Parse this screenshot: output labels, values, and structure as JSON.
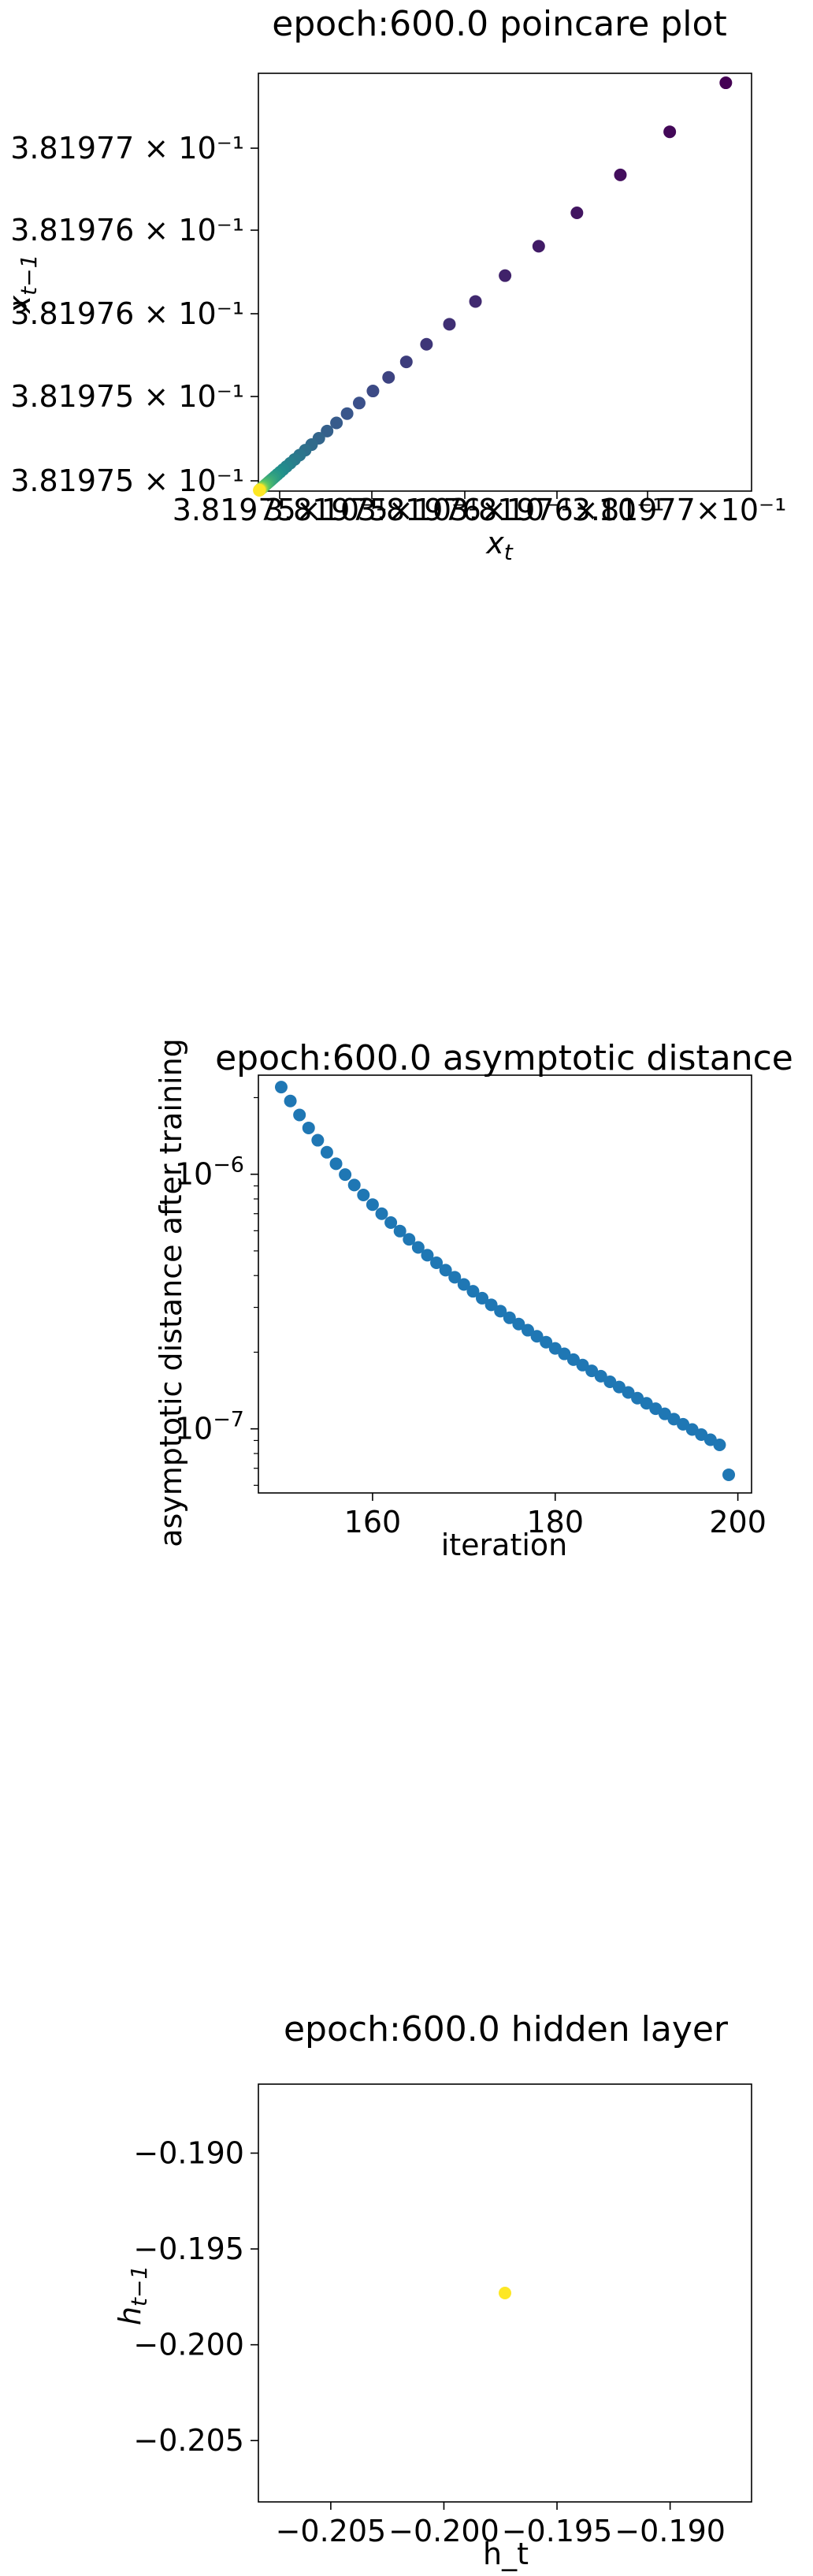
{
  "charts": [
    {
      "title": "epoch:600.0 poincare plot",
      "xlabel": "x",
      "xlabel_sub": "t",
      "ylabel": "x",
      "ylabel_sub": "t−1",
      "xtick_labels": [
        "3.81975×10⁻¹",
        "3.81975×10⁻¹",
        "3.81976×10⁻¹",
        "3.81976×10⁻¹",
        "3.81977×10⁻¹"
      ],
      "ytick_labels": [
        "3.81975 × 10⁻¹",
        "3.81975 × 10⁻¹",
        "3.81976 × 10⁻¹",
        "3.81976 × 10⁻¹",
        "3.81977 × 10⁻¹"
      ]
    },
    {
      "title": "epoch:600.0 asymptotic distance",
      "xlabel": "iteration",
      "ylabel": "asymptotic distance after training",
      "xtick_labels": [
        "160",
        "180",
        "200"
      ],
      "ytick_major": [
        {
          "base": "10",
          "exp": "−7"
        },
        {
          "base": "10",
          "exp": "−6"
        }
      ]
    },
    {
      "title": "epoch:600.0 hidden layer",
      "xlabel": "h_t",
      "ylabel": "h",
      "ylabel_sub": "t−1",
      "xtick_labels": [
        "−0.205",
        "−0.200",
        "−0.195",
        "−0.190"
      ],
      "ytick_labels": [
        "−0.190",
        "−0.195",
        "−0.200",
        "−0.205"
      ]
    }
  ],
  "chart_data": [
    {
      "type": "scatter",
      "title": "epoch:600.0 poincare plot",
      "xlabel": "x_t",
      "ylabel": "x_{t-1}",
      "xscale": "log",
      "yscale": "log",
      "xlim": [
        0.381975,
        0.3819773
      ],
      "ylim": [
        0.381975,
        0.3819772
      ],
      "colormap": "viridis",
      "color_meaning": "iteration order (early = purple, late = yellow)",
      "point_count": 50,
      "first_point": [
        0.38197718,
        0.38197715
      ],
      "points_sample": [
        [
          0.38197718,
          0.38197715
        ],
        [
          0.38197692,
          0.3819769
        ],
        [
          0.38197669,
          0.38197668
        ],
        [
          0.38197648,
          0.38197647
        ],
        [
          0.38197629,
          0.38197628
        ],
        [
          0.38197612,
          0.38197611
        ],
        [
          0.38197596,
          0.38197595
        ],
        [
          0.38197582,
          0.38197581
        ],
        [
          0.38197569,
          0.38197568
        ],
        [
          0.38197557,
          0.38197556
        ],
        [
          0.38197546,
          0.38197545
        ],
        [
          0.38197536,
          0.38197535
        ],
        [
          0.38197527,
          0.38197526
        ],
        [
          0.38197519,
          0.38197518
        ],
        [
          0.38197512,
          0.38197511
        ],
        [
          0.38197506,
          0.38197505
        ]
      ],
      "cluster_end": [
        0.381975,
        0.381975
      ],
      "grid": false
    },
    {
      "type": "scatter",
      "title": "epoch:600.0 asymptotic distance",
      "xlabel": "iteration",
      "ylabel": "asymptotic distance after training",
      "yscale": "log",
      "xlim": [
        147.5,
        201.5
      ],
      "ylim": [
        5.6e-08,
        2.45e-06
      ],
      "x": [
        150,
        151,
        152,
        153,
        154,
        155,
        156,
        157,
        158,
        159,
        160,
        161,
        162,
        163,
        164,
        165,
        166,
        167,
        168,
        169,
        170,
        171,
        172,
        173,
        174,
        175,
        176,
        177,
        178,
        179,
        180,
        181,
        182,
        183,
        184,
        185,
        186,
        187,
        188,
        189,
        190,
        191,
        192,
        193,
        194,
        195,
        196,
        197,
        198,
        199
      ],
      "y": [
        2.2e-06,
        1.94e-06,
        1.71e-06,
        1.52e-06,
        1.36e-06,
        1.22e-06,
        1.1e-06,
        9.97e-07,
        9.07e-07,
        8.29e-07,
        7.6e-07,
        7e-07,
        6.46e-07,
        5.98e-07,
        5.55e-07,
        5.16e-07,
        4.81e-07,
        4.49e-07,
        4.2e-07,
        3.94e-07,
        3.69e-07,
        3.47e-07,
        3.26e-07,
        3.07e-07,
        2.9e-07,
        2.73e-07,
        2.58e-07,
        2.44e-07,
        2.31e-07,
        2.19e-07,
        2.07e-07,
        1.97e-07,
        1.87e-07,
        1.78e-07,
        1.69e-07,
        1.61e-07,
        1.53e-07,
        1.46e-07,
        1.39e-07,
        1.32e-07,
        1.26e-07,
        1.2e-07,
        1.145e-07,
        1.092e-07,
        1.042e-07,
        9.94e-08,
        9.49e-08,
        9.06e-08,
        8.65e-08,
        6.6e-08
      ],
      "color": "#1f77b4",
      "grid": false
    },
    {
      "type": "scatter",
      "title": "epoch:600.0 hidden layer",
      "xlabel": "h_t",
      "ylabel": "h_{t-1}",
      "xlim": [
        -0.2082,
        -0.1864
      ],
      "ylim": [
        -0.2082,
        -0.1864
      ],
      "points": [
        [
          -0.1973,
          -0.1973
        ]
      ],
      "color": "#fde725",
      "grid": false
    }
  ]
}
